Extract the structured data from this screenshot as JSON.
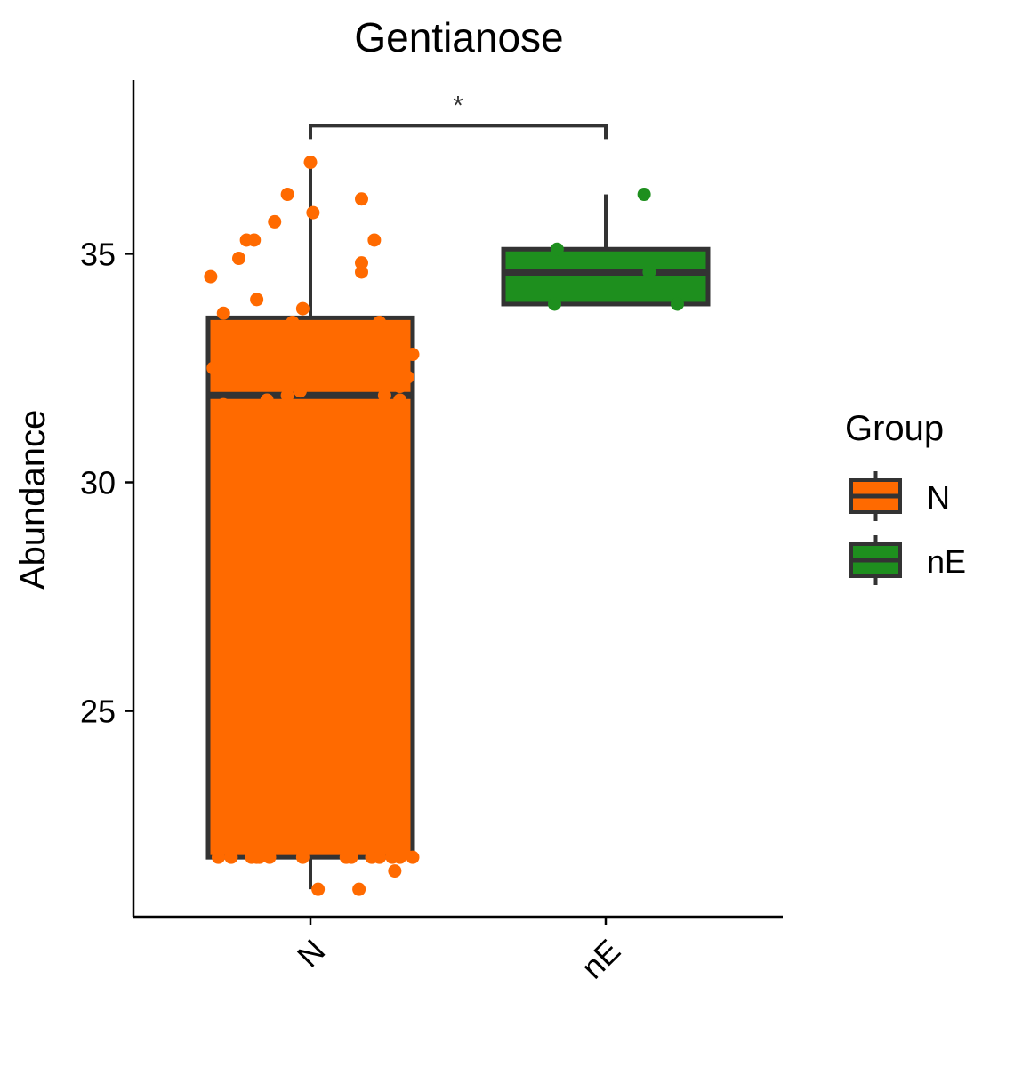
{
  "chart_data": {
    "type": "box",
    "title": "Gentianose",
    "xlabel": "",
    "ylabel": "Abundance",
    "ylim": [
      20.5,
      38.8
    ],
    "yticks": [
      25,
      30,
      35
    ],
    "categories": [
      "N",
      "nE"
    ],
    "legend": {
      "title": "Group",
      "placement": "right",
      "entries": [
        {
          "label": "N",
          "color": "#FF6A00"
        },
        {
          "label": "nE",
          "color": "#1E8F1E"
        }
      ]
    },
    "series": [
      {
        "name": "N",
        "color": "#FF6A00",
        "box": {
          "whisker_low": 21.1,
          "q1": 21.8,
          "median": 31.9,
          "q3": 33.6,
          "whisker_high": 37.0
        },
        "points": [
          {
            "x": -0.39,
            "y": 34.5
          },
          {
            "x": -0.28,
            "y": 34.9
          },
          {
            "x": -0.25,
            "y": 35.3
          },
          {
            "x": -0.22,
            "y": 35.3
          },
          {
            "x": -0.14,
            "y": 35.7
          },
          {
            "x": -0.09,
            "y": 36.3
          },
          {
            "x": 0.0,
            "y": 37.0
          },
          {
            "x": 0.01,
            "y": 35.9
          },
          {
            "x": 0.2,
            "y": 36.2
          },
          {
            "x": 0.25,
            "y": 35.3
          },
          {
            "x": 0.2,
            "y": 34.8
          },
          {
            "x": 0.2,
            "y": 34.6
          },
          {
            "x": -0.21,
            "y": 34.0
          },
          {
            "x": -0.34,
            "y": 33.7
          },
          {
            "x": -0.03,
            "y": 33.8
          },
          {
            "x": -0.07,
            "y": 33.5
          },
          {
            "x": 0.27,
            "y": 33.5
          },
          {
            "x": 0.4,
            "y": 32.8
          },
          {
            "x": -0.38,
            "y": 32.5
          },
          {
            "x": 0.38,
            "y": 32.3
          },
          {
            "x": 0.35,
            "y": 32.1
          },
          {
            "x": -0.04,
            "y": 32.0
          },
          {
            "x": -0.09,
            "y": 31.9
          },
          {
            "x": 0.29,
            "y": 31.9
          },
          {
            "x": -0.17,
            "y": 31.8
          },
          {
            "x": 0.35,
            "y": 31.8
          },
          {
            "x": -0.34,
            "y": 31.7
          },
          {
            "x": -0.34,
            "y": 31.2
          },
          {
            "x": 0.36,
            "y": 30.1
          },
          {
            "x": -0.36,
            "y": 21.8
          },
          {
            "x": -0.31,
            "y": 21.8
          },
          {
            "x": -0.23,
            "y": 21.8
          },
          {
            "x": -0.21,
            "y": 21.8
          },
          {
            "x": -0.2,
            "y": 21.8
          },
          {
            "x": -0.16,
            "y": 21.8
          },
          {
            "x": -0.03,
            "y": 21.8
          },
          {
            "x": 0.14,
            "y": 21.8
          },
          {
            "x": 0.16,
            "y": 21.8
          },
          {
            "x": 0.24,
            "y": 21.8
          },
          {
            "x": 0.27,
            "y": 21.8
          },
          {
            "x": 0.32,
            "y": 21.8
          },
          {
            "x": 0.35,
            "y": 21.8
          },
          {
            "x": 0.4,
            "y": 21.8
          },
          {
            "x": 0.33,
            "y": 21.5
          },
          {
            "x": 0.03,
            "y": 21.1
          },
          {
            "x": 0.19,
            "y": 21.1
          }
        ]
      },
      {
        "name": "nE",
        "color": "#1E8F1E",
        "box": {
          "whisker_low": 33.9,
          "q1": 33.9,
          "median": 34.6,
          "q3": 35.1,
          "whisker_high": 36.3
        },
        "points": [
          {
            "x": 0.15,
            "y": 36.3
          },
          {
            "x": -0.19,
            "y": 35.1
          },
          {
            "x": 0.17,
            "y": 34.6
          },
          {
            "x": -0.2,
            "y": 33.9
          },
          {
            "x": 0.28,
            "y": 33.9
          }
        ]
      }
    ],
    "annotations": [
      {
        "type": "significance_bracket",
        "from": "N",
        "to": "nE",
        "y": 37.8,
        "label": "*"
      }
    ]
  }
}
